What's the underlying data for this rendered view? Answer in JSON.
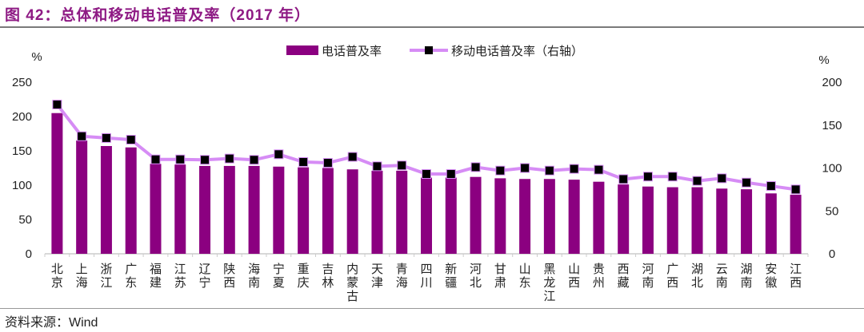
{
  "title": "图 42：总体和移动电话普及率（2017 年）",
  "source": "资料来源：Wind",
  "chart_data": {
    "type": "bar+line",
    "categories": [
      "北京",
      "上海",
      "浙江",
      "广东",
      "福建",
      "江苏",
      "辽宁",
      "陕西",
      "海南",
      "宁夏",
      "重庆",
      "吉林",
      "内蒙古",
      "天津",
      "青海",
      "四川",
      "新疆",
      "河北",
      "甘肃",
      "山东",
      "黑龙江",
      "山西",
      "贵州",
      "西藏",
      "河南",
      "广西",
      "湖北",
      "云南",
      "湖南",
      "安徽",
      "江西"
    ],
    "series": [
      {
        "name": "电话普及率",
        "type": "bar",
        "axis": "left",
        "color": "#8b0080",
        "values": [
          205,
          165,
          157,
          155,
          131,
          130,
          128,
          128,
          128,
          127,
          126,
          125,
          123,
          121,
          121,
          111,
          111,
          112,
          110,
          109,
          109,
          108,
          105,
          101,
          98,
          97,
          97,
          95,
          94,
          88,
          86
        ]
      },
      {
        "name": "移动电话普及率（右轴）",
        "type": "line",
        "axis": "right",
        "color": "#d68cf5",
        "marker_color": "#000000",
        "values": [
          174,
          137,
          135,
          133,
          110,
          110,
          109.5,
          111,
          109.5,
          116,
          107,
          106,
          113,
          102,
          103,
          93,
          93,
          101,
          97,
          100,
          97,
          99,
          98,
          87,
          90,
          90,
          85,
          88,
          83,
          79,
          75
        ]
      }
    ],
    "left_axis": {
      "unit": "%",
      "range": [
        0,
        250
      ],
      "ticks": [
        0,
        50,
        100,
        150,
        200,
        250
      ]
    },
    "right_axis": {
      "unit": "%",
      "range": [
        0,
        200
      ],
      "ticks": [
        0,
        50,
        100,
        150,
        200
      ]
    },
    "grid": false,
    "legend_placement": "top-center"
  }
}
